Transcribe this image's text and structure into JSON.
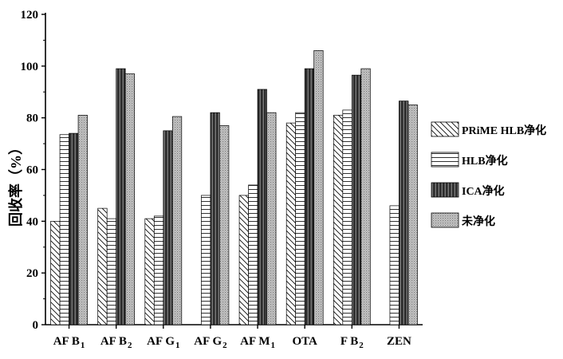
{
  "chart_data": {
    "type": "bar",
    "ylabel": "回收率（%）",
    "ylim": [
      0,
      120
    ],
    "yticks": [
      0,
      20,
      40,
      60,
      80,
      100,
      120
    ],
    "categories": [
      {
        "main": "AF B",
        "sub": "1"
      },
      {
        "main": "AF B",
        "sub": "2"
      },
      {
        "main": "AF G",
        "sub": "1"
      },
      {
        "main": "AF G",
        "sub": "2"
      },
      {
        "main": "AF M",
        "sub": "1"
      },
      {
        "main": "OTA",
        "sub": ""
      },
      {
        "main": "F B",
        "sub": "2"
      },
      {
        "main": "ZEN",
        "sub": ""
      }
    ],
    "series": [
      {
        "name": "PRiME HLB净化",
        "pattern": "diagonal-hatch",
        "values": [
          40,
          45,
          41,
          0,
          50,
          78,
          81,
          0
        ]
      },
      {
        "name": "HLB净化",
        "pattern": "horizontal-lines",
        "values": [
          73.5,
          41,
          42,
          50,
          54,
          82,
          83,
          46
        ]
      },
      {
        "name": "ICA净化",
        "pattern": "dark-vertical-stripes",
        "values": [
          74,
          99,
          75,
          82,
          91,
          99,
          96.5,
          86.5
        ]
      },
      {
        "name": "未净化",
        "pattern": "light-dotted-gray",
        "values": [
          81,
          97,
          80.5,
          77,
          82,
          106,
          99,
          85
        ]
      }
    ],
    "legend_position": "right",
    "grid": false
  }
}
